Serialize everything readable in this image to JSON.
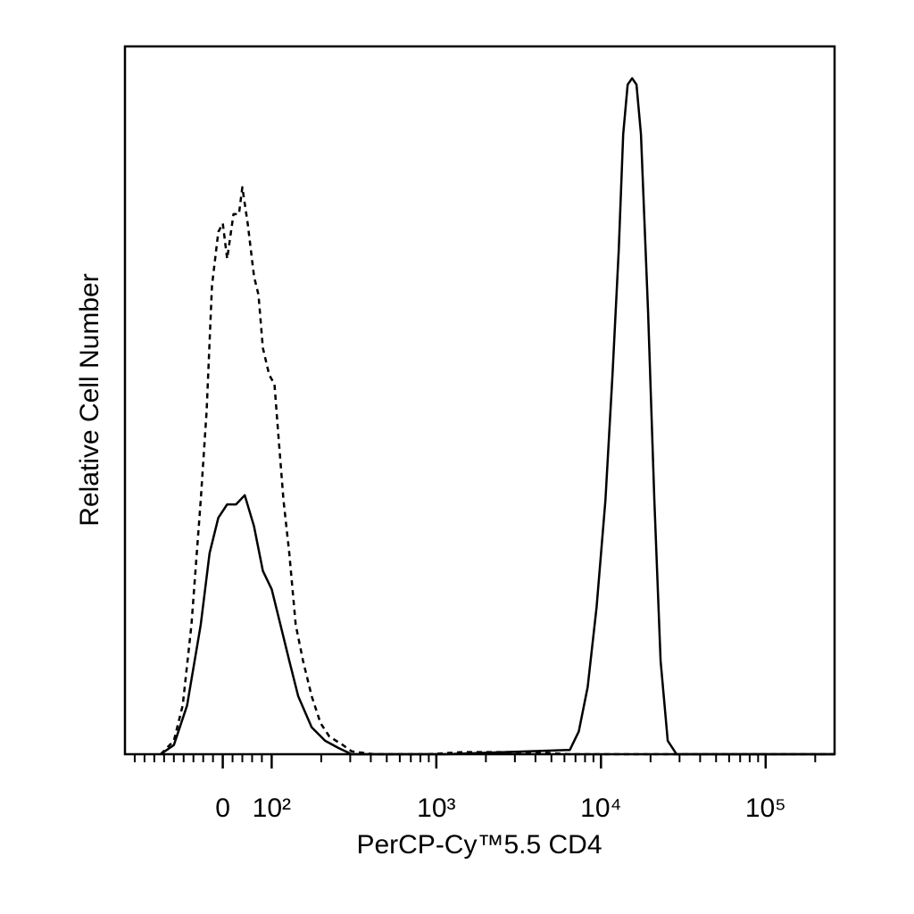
{
  "chart_data": {
    "type": "line",
    "xlabel": "PerCP-Cy™5.5 CD4",
    "ylabel": "Relative Cell Number",
    "xscale": "biexponential",
    "xlim": [
      -200,
      262144
    ],
    "ylim": [
      0,
      100
    ],
    "xticks": [
      0,
      {
        "value": 100,
        "label": "10²"
      },
      {
        "value": 1000,
        "label": "10³"
      },
      {
        "value": 10000,
        "label": "10⁴"
      },
      {
        "value": 100000,
        "label": "10⁵"
      }
    ],
    "xminorticks": [
      -180,
      -160,
      -140,
      -120,
      -100,
      -80,
      -60,
      -40,
      -20,
      20,
      40,
      60,
      80,
      200,
      300,
      400,
      500,
      600,
      700,
      800,
      900,
      2000,
      3000,
      4000,
      5000,
      6000,
      7000,
      8000,
      9000,
      20000,
      30000,
      40000,
      50000,
      60000,
      70000,
      80000,
      90000,
      200000
    ],
    "series": [
      {
        "color": "#000000",
        "dashed": true,
        "x": [
          -127,
          -100,
          -82,
          -64,
          -45,
          -33,
          -22,
          -9,
          0,
          9,
          22,
          33,
          40,
          51,
          64,
          73,
          82,
          95,
          104,
          109,
          118,
          128,
          140,
          155,
          175,
          198,
          224,
          271,
          306,
          419,
          883,
          1453,
          3933,
          6470,
          13650,
          28780,
          262144
        ],
        "values": [
          0,
          1.9,
          6.9,
          18.3,
          35.9,
          48.5,
          66.2,
          73.8,
          75.0,
          70.0,
          76.3,
          76.3,
          80.1,
          75.0,
          67.5,
          64.9,
          57.4,
          53.6,
          52.3,
          46.0,
          35.9,
          28.4,
          18.3,
          13.2,
          8.2,
          4.4,
          2.5,
          1.3,
          0.4,
          0,
          0,
          0.3,
          0.3,
          0,
          0,
          0,
          0
        ]
      },
      {
        "color": "#000000",
        "dashed": false,
        "x": [
          -127,
          -100,
          -73,
          -45,
          -27,
          -9,
          9,
          27,
          45,
          64,
          82,
          100,
          113,
          128,
          145,
          175,
          211,
          254,
          306,
          1132,
          6470,
          7328,
          8300,
          9400,
          10640,
          11750,
          12820,
          13650,
          14520,
          15450,
          16440,
          17500,
          19320,
          21090,
          23020,
          25420,
          28780,
          262144
        ],
        "values": [
          0,
          1.3,
          6.9,
          18.3,
          28.4,
          33.4,
          35.3,
          35.3,
          36.6,
          32.2,
          25.9,
          23.3,
          18.3,
          13.2,
          8.2,
          3.8,
          1.9,
          0.9,
          0,
          0,
          0.6,
          3.2,
          9.5,
          20.8,
          35.9,
          53.6,
          71.2,
          87.6,
          94.6,
          95.5,
          94.6,
          87.6,
          62.4,
          35.9,
          13.2,
          1.9,
          0,
          0
        ]
      }
    ]
  }
}
